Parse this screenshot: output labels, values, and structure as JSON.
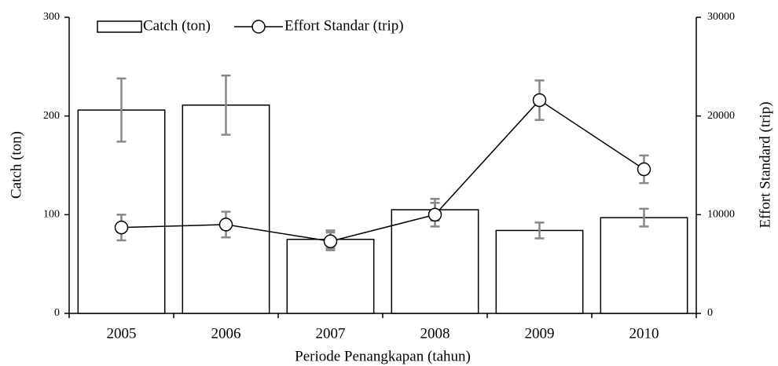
{
  "chart_data": {
    "type": "bar",
    "x_label": "Periode Penangkapan (tahun)",
    "y_label": "Catch (ton)",
    "y2_label": "Effort Standard (trip)",
    "categories": [
      "2005",
      "2006",
      "2007",
      "2008",
      "2009",
      "2010"
    ],
    "series": [
      {
        "name": "Catch (ton)",
        "type": "bar",
        "color": "#ffffff",
        "error_color": "#888888",
        "values": [
          206,
          211,
          75,
          105,
          84,
          97
        ],
        "errors": [
          32,
          30,
          9,
          11,
          8,
          9
        ]
      },
      {
        "name": "Effort Standar (trip)",
        "type": "line",
        "axis": "y2",
        "color": "#000000",
        "error_color": "#888888",
        "values": [
          8700,
          9000,
          7300,
          10000,
          21600,
          14600
        ],
        "errors": [
          1300,
          1300,
          900,
          1200,
          2000,
          1400
        ]
      }
    ],
    "ylim": [
      0,
      300
    ],
    "yticks": [
      0,
      100,
      200,
      300
    ],
    "y2lim": [
      0,
      30000
    ],
    "y2ticks": [
      0,
      10000,
      20000,
      30000
    ],
    "grid": false,
    "legend": "top"
  }
}
